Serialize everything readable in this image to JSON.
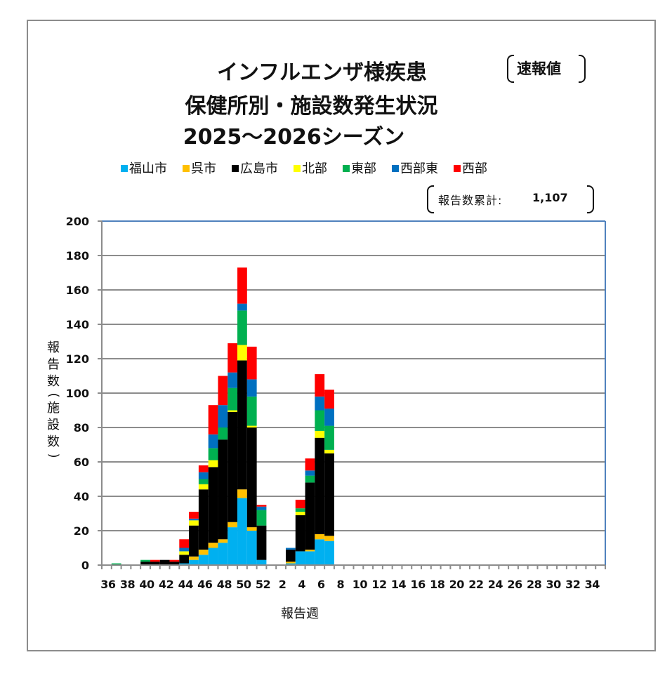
{
  "title": {
    "line1": "インフルエンザ様疾患",
    "line2": "保健所別・施設数発生状況",
    "line3": "2025～2026シーズン",
    "badge": "速報値"
  },
  "cumulative": {
    "label": "報告数累計:",
    "value": "1,107"
  },
  "axis": {
    "ylabel": [
      "報",
      "告",
      "数",
      "(",
      "施",
      "設",
      "数",
      ")"
    ],
    "xlabel": "報告週"
  },
  "chart_data": {
    "type": "bar",
    "stacked": true,
    "title": "インフルエンザ様疾患 保健所別・施設数発生状況 2025～2026シーズン",
    "xlabel": "報告週",
    "ylabel": "報告数(施設数)",
    "ylim": [
      0,
      200
    ],
    "yticks": [
      0,
      20,
      40,
      60,
      80,
      100,
      120,
      140,
      160,
      180,
      200
    ],
    "grid": true,
    "legend_position": "top",
    "categories": [
      36,
      37,
      38,
      39,
      40,
      41,
      42,
      43,
      44,
      45,
      46,
      47,
      48,
      49,
      50,
      51,
      52,
      1,
      2,
      3,
      4,
      5,
      6,
      7,
      8,
      9,
      10,
      11,
      12,
      13,
      14,
      15,
      16,
      17,
      18,
      19,
      20,
      21,
      22,
      23,
      24,
      25,
      26,
      27,
      28,
      29,
      30,
      31,
      32,
      33,
      34,
      35
    ],
    "xtick_labels": [
      "36",
      "38",
      "40",
      "42",
      "44",
      "46",
      "48",
      "50",
      "52",
      "2",
      "4",
      "6",
      "8",
      "10",
      "12",
      "14",
      "16",
      "18",
      "20",
      "22",
      "24",
      "26",
      "28",
      "30",
      "32",
      "34"
    ],
    "series": [
      {
        "name": "福山市",
        "color": "#00b0f0",
        "values": [
          0,
          0,
          0,
          0,
          0,
          0,
          0,
          0,
          1,
          3,
          6,
          10,
          13,
          22,
          39,
          20,
          3,
          0,
          0,
          1,
          8,
          8,
          15,
          14,
          0,
          0,
          0,
          0,
          0,
          0,
          0,
          0,
          0,
          0,
          0,
          0,
          0,
          0,
          0,
          0,
          0,
          0,
          0,
          0,
          0,
          0,
          0,
          0,
          0,
          0,
          0,
          0
        ]
      },
      {
        "name": "呉市",
        "color": "#ffc000",
        "values": [
          0,
          0,
          0,
          0,
          0,
          0,
          0,
          0,
          0,
          2,
          3,
          3,
          2,
          3,
          5,
          2,
          0,
          0,
          0,
          1,
          0,
          1,
          3,
          3,
          0,
          0,
          0,
          0,
          0,
          0,
          0,
          0,
          0,
          0,
          0,
          0,
          0,
          0,
          0,
          0,
          0,
          0,
          0,
          0,
          0,
          0,
          0,
          0,
          0,
          0,
          0,
          0
        ]
      },
      {
        "name": "広島市",
        "color": "#000000",
        "values": [
          0,
          0,
          0,
          0,
          2,
          2,
          3,
          2,
          5,
          18,
          35,
          44,
          58,
          64,
          75,
          58,
          20,
          0,
          0,
          7,
          21,
          39,
          56,
          48,
          0,
          0,
          0,
          0,
          0,
          0,
          0,
          0,
          0,
          0,
          0,
          0,
          0,
          0,
          0,
          0,
          0,
          0,
          0,
          0,
          0,
          0,
          0,
          0,
          0,
          0,
          0,
          0
        ]
      },
      {
        "name": "北部",
        "color": "#ffff00",
        "values": [
          0,
          0,
          0,
          0,
          0,
          0,
          0,
          0,
          2,
          3,
          3,
          4,
          0,
          1,
          9,
          1,
          0,
          0,
          0,
          0,
          2,
          0,
          4,
          2,
          0,
          0,
          0,
          0,
          0,
          0,
          0,
          0,
          0,
          0,
          0,
          0,
          0,
          0,
          0,
          0,
          0,
          0,
          0,
          0,
          0,
          0,
          0,
          0,
          0,
          0,
          0,
          0
        ]
      },
      {
        "name": "東部",
        "color": "#00b050",
        "values": [
          0,
          1,
          0,
          0,
          1,
          0,
          0,
          0,
          0,
          0,
          3,
          7,
          7,
          13,
          20,
          17,
          9,
          0,
          0,
          0,
          2,
          4,
          12,
          14,
          0,
          0,
          0,
          0,
          0,
          0,
          0,
          0,
          0,
          0,
          0,
          0,
          0,
          0,
          0,
          0,
          0,
          0,
          0,
          0,
          0,
          0,
          0,
          0,
          0,
          0,
          0,
          0
        ]
      },
      {
        "name": "西部東",
        "color": "#0070c0",
        "values": [
          0,
          0,
          0,
          0,
          0,
          0,
          0,
          0,
          2,
          1,
          4,
          8,
          13,
          9,
          4,
          10,
          2,
          0,
          0,
          1,
          0,
          3,
          8,
          10,
          0,
          0,
          0,
          0,
          0,
          0,
          0,
          0,
          0,
          0,
          0,
          0,
          0,
          0,
          0,
          0,
          0,
          0,
          0,
          0,
          0,
          0,
          0,
          0,
          0,
          0,
          0,
          0
        ]
      },
      {
        "name": "西部",
        "color": "#ff0000",
        "values": [
          0,
          0,
          0,
          0,
          0,
          1,
          0,
          1,
          5,
          4,
          4,
          17,
          17,
          17,
          21,
          19,
          1,
          0,
          0,
          0,
          5,
          7,
          13,
          11,
          0,
          0,
          0,
          0,
          0,
          0,
          0,
          0,
          0,
          0,
          0,
          0,
          0,
          0,
          0,
          0,
          0,
          0,
          0,
          0,
          0,
          0,
          0,
          0,
          0,
          0,
          0,
          0
        ]
      }
    ],
    "totals": [
      0,
      1,
      0,
      0,
      3,
      3,
      3,
      3,
      15,
      31,
      58,
      93,
      110,
      129,
      173,
      127,
      35,
      0,
      0,
      10,
      38,
      62,
      111,
      102,
      0,
      0,
      0,
      0,
      0,
      0,
      0,
      0,
      0,
      0,
      0,
      0,
      0,
      0,
      0,
      0,
      0,
      0,
      0,
      0,
      0,
      0,
      0,
      0,
      0,
      0,
      0,
      0
    ],
    "cumulative_total": 1107
  }
}
